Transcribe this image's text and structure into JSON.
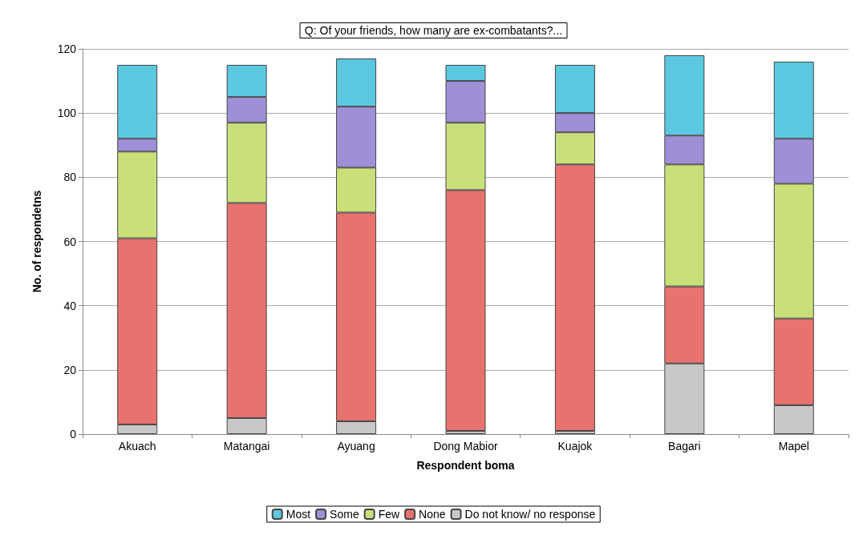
{
  "chart_data": {
    "type": "bar",
    "stacked": true,
    "title": "Q: Of your friends, how many are ex-combatants?...",
    "xlabel": "Respondent boma",
    "ylabel": "No. of respondetns",
    "categories": [
      "Akuach",
      "Matangai",
      "Ayuang",
      "Dong Mabior",
      "Kuajok",
      "Bagari",
      "Mapel"
    ],
    "series": [
      {
        "name": "Do not know/ no response",
        "color": "#c8c8c8",
        "values": [
          3,
          5,
          4,
          1,
          1,
          22,
          9
        ]
      },
      {
        "name": "None",
        "color": "#e8726e",
        "values": [
          58,
          67,
          65,
          75,
          83,
          24,
          27
        ]
      },
      {
        "name": "Few",
        "color": "#c9e07a",
        "values": [
          27,
          25,
          14,
          21,
          10,
          38,
          42
        ]
      },
      {
        "name": "Some",
        "color": "#9f8fd6",
        "values": [
          4,
          8,
          19,
          13,
          6,
          9,
          14
        ]
      },
      {
        "name": "Most",
        "color": "#5bc8e0",
        "values": [
          23,
          10,
          15,
          5,
          15,
          25,
          24
        ]
      }
    ],
    "ylim": [
      0,
      120
    ],
    "yticks": [
      0,
      20,
      40,
      60,
      80,
      100,
      120
    ],
    "grid": "y",
    "legend": "bottom"
  }
}
